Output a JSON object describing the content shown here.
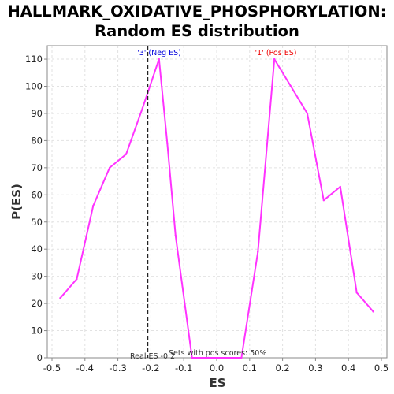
{
  "title_line1": "HALLMARK_OXIDATIVE_PHOSPHORYLATION:",
  "title_line2": "Random ES distribution",
  "chart_data": {
    "type": "line",
    "title": "HALLMARK_OXIDATIVE_PHOSPHORYLATION: Random ES distribution",
    "xlabel": "ES",
    "ylabel": "P(ES)",
    "xlim": [
      -0.5,
      0.5
    ],
    "ylim": [
      0,
      115
    ],
    "xticks": [
      "-0.5",
      "-0.4",
      "-0.3",
      "-0.2",
      "-0.1",
      "0.0",
      "0.1",
      "0.2",
      "0.3",
      "0.4",
      "0.5"
    ],
    "yticks": [
      "0",
      "10",
      "20",
      "30",
      "40",
      "50",
      "60",
      "70",
      "80",
      "90",
      "100",
      "110"
    ],
    "grid": true,
    "series": [
      {
        "color": "#ff33ff",
        "x": [
          -0.475,
          -0.425,
          -0.375,
          -0.325,
          -0.275,
          -0.225,
          -0.175,
          -0.15,
          -0.125,
          -0.075,
          -0.025,
          0.025,
          0.075,
          0.125,
          0.175,
          0.225,
          0.275,
          0.325,
          0.375,
          0.425,
          0.475
        ],
        "y": [
          22,
          29,
          56,
          70,
          75,
          92,
          110,
          79,
          45,
          0,
          0,
          0,
          0,
          39,
          110,
          100,
          90,
          58,
          63,
          24,
          17
        ]
      }
    ],
    "markers": {
      "real_es_x": -0.21,
      "neg_label": "'3' (Neg ES)",
      "neg_color": "#0000dd",
      "pos_label": "'1' (Pos ES)",
      "pos_color": "#ee0000",
      "real_es_label": "Real ES -0.2",
      "pos_scores_label": "Sets with pos scores: 50%"
    }
  }
}
